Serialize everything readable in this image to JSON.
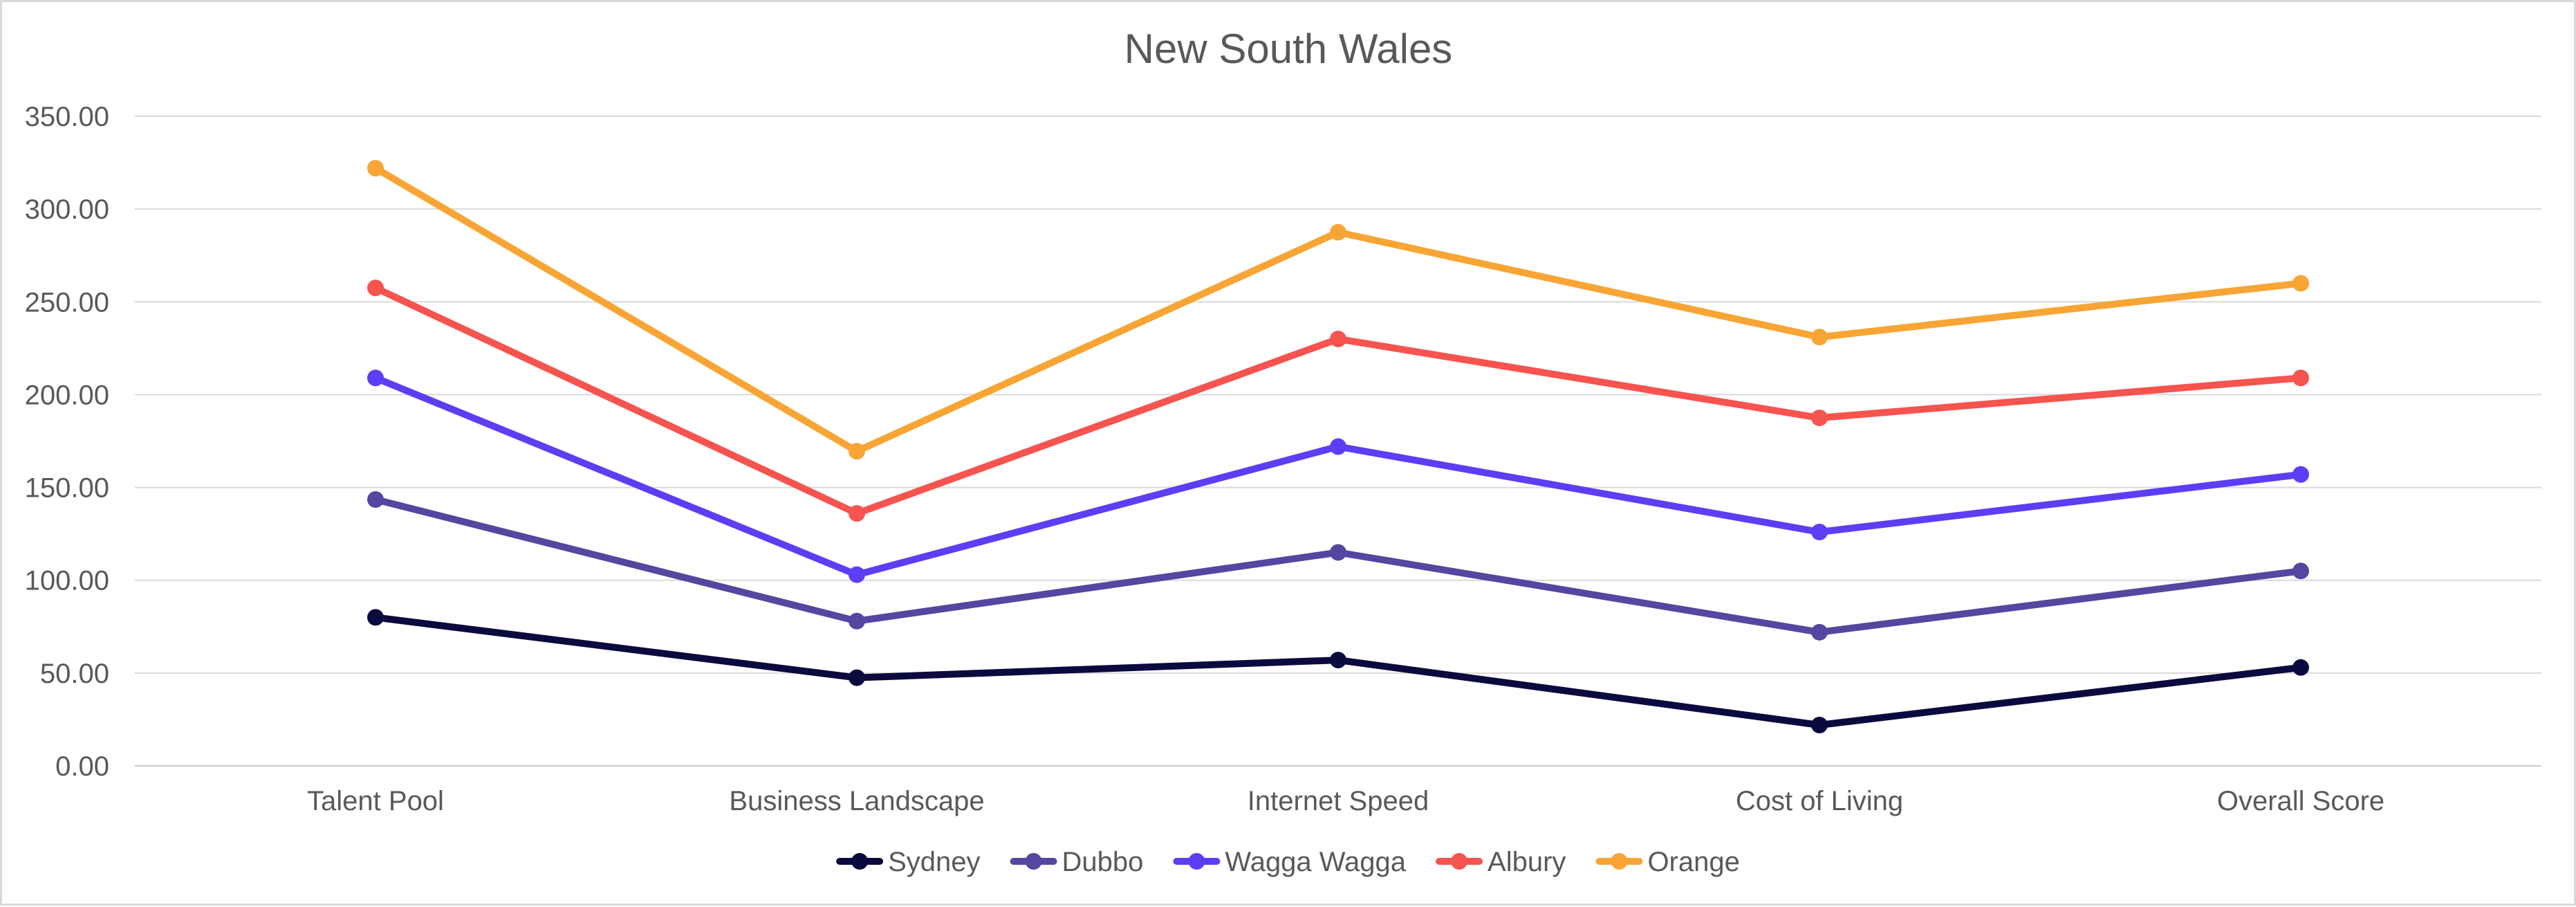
{
  "chart_data": {
    "type": "line",
    "title": "New South Wales",
    "xlabel": "",
    "ylabel": "",
    "categories": [
      "Talent Pool",
      "Business Landscape",
      "Internet Speed",
      "Cost of Living",
      "Overall Score"
    ],
    "ylim": [
      0,
      350
    ],
    "y_ticks": [
      "0.00",
      "50.00",
      "100.00",
      "150.00",
      "200.00",
      "250.00",
      "300.00",
      "350.00"
    ],
    "grid": true,
    "legend_position": "bottom",
    "series": [
      {
        "name": "Sydney",
        "color": "#0b0a3e",
        "values": [
          80,
          47.5,
          57,
          22,
          53
        ]
      },
      {
        "name": "Dubbo",
        "color": "#5546a0",
        "values": [
          143.5,
          78,
          115,
          72,
          105
        ]
      },
      {
        "name": "Wagga Wagga",
        "color": "#5a3ff5",
        "values": [
          209,
          103,
          172,
          126,
          157
        ]
      },
      {
        "name": "Albury",
        "color": "#f7534f",
        "values": [
          257.5,
          136,
          230,
          187.5,
          209
        ]
      },
      {
        "name": "Orange",
        "color": "#f8a535",
        "values": [
          322,
          169.5,
          287.5,
          231,
          260
        ]
      }
    ]
  }
}
